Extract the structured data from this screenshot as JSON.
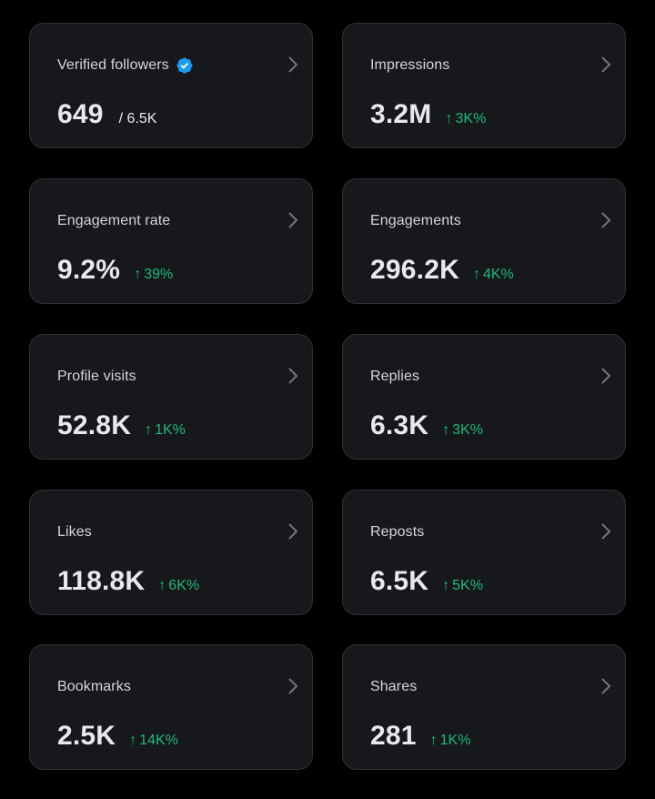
{
  "colors": {
    "background": "#000000",
    "card": "#16181c",
    "card_border": "#2f3336",
    "positive": "#21b97a",
    "verified": "#1d9bf0"
  },
  "icons": {
    "verified": "verified-badge-icon",
    "chevron": "chevron-right-icon",
    "arrow": "arrow-up-icon"
  },
  "arrow_glyph": "↑",
  "cards": [
    {
      "label": "Verified followers",
      "value": "649",
      "sub": "/ 6.5K"
    },
    {
      "label": "Impressions",
      "value": "3.2M",
      "change": "3K%"
    },
    {
      "label": "Engagement rate",
      "value": "9.2%",
      "change": "39%"
    },
    {
      "label": "Engagements",
      "value": "296.2K",
      "change": "4K%"
    },
    {
      "label": "Profile visits",
      "value": "52.8K",
      "change": "1K%"
    },
    {
      "label": "Replies",
      "value": "6.3K",
      "change": "3K%"
    },
    {
      "label": "Likes",
      "value": "118.8K",
      "change": "6K%"
    },
    {
      "label": "Reposts",
      "value": "6.5K",
      "change": "5K%"
    },
    {
      "label": "Bookmarks",
      "value": "2.5K",
      "change": "14K%"
    },
    {
      "label": "Shares",
      "value": "281",
      "change": "1K%"
    }
  ]
}
